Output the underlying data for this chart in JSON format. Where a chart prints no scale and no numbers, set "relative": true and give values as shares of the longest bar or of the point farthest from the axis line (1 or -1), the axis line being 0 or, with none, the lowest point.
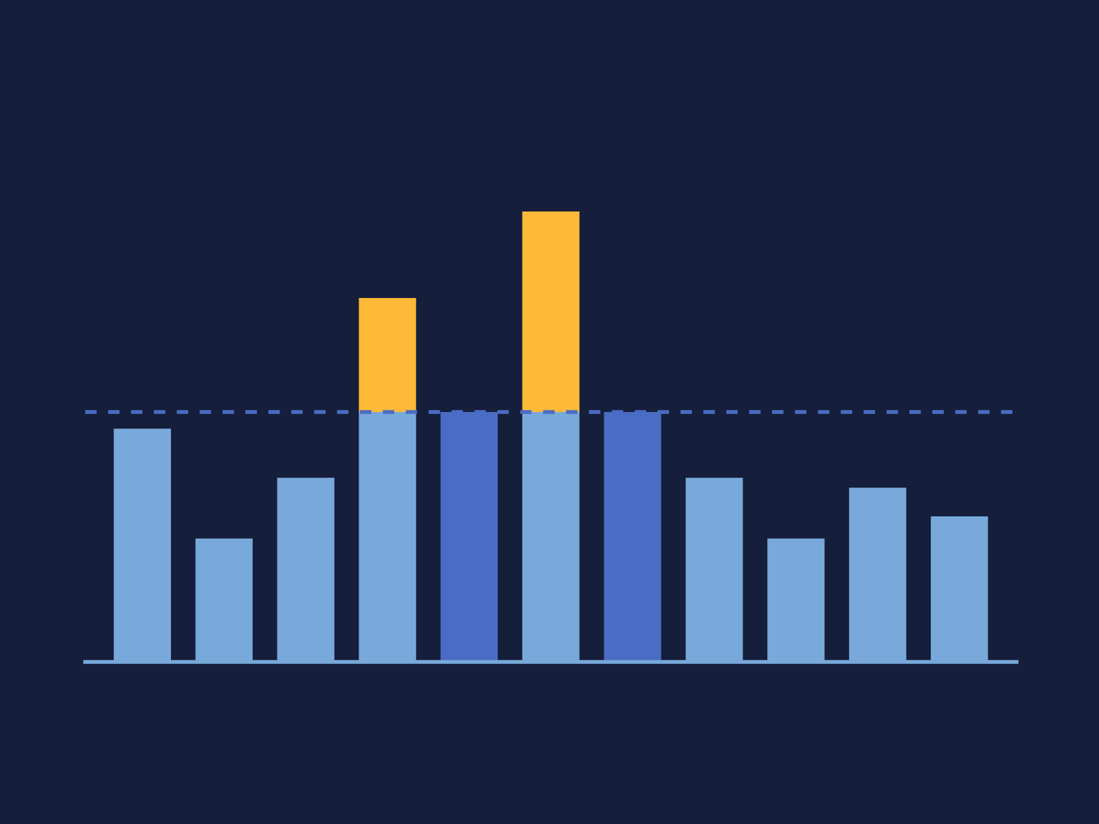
{
  "chart_data": {
    "type": "bar",
    "relative": true,
    "stacked": true,
    "categories": [
      null,
      null,
      null,
      null,
      null,
      null,
      null,
      null,
      null,
      null,
      null
    ],
    "series": [
      {
        "colors": [
          "#78a9da",
          "#78a9da",
          "#78a9da",
          "#78a9da",
          "#4a6cc4",
          "#78a9da",
          "#4a6cc4",
          "#78a9da",
          "#78a9da",
          "#78a9da",
          "#78a9da"
        ],
        "values": [
          0.518,
          0.274,
          0.409,
          0.555,
          0.555,
          0.555,
          0.555,
          0.409,
          0.274,
          0.387,
          0.323
        ]
      },
      {
        "color": "#ffb938",
        "values": [
          null,
          null,
          null,
          0.253,
          null,
          0.445,
          null,
          null,
          null,
          null,
          null
        ]
      }
    ],
    "ref_lines": [
      {
        "axis": "y",
        "value": 0.555,
        "color": "#4a6cc4",
        "line_style": "dashed"
      }
    ],
    "grid": false,
    "legend": false
  }
}
